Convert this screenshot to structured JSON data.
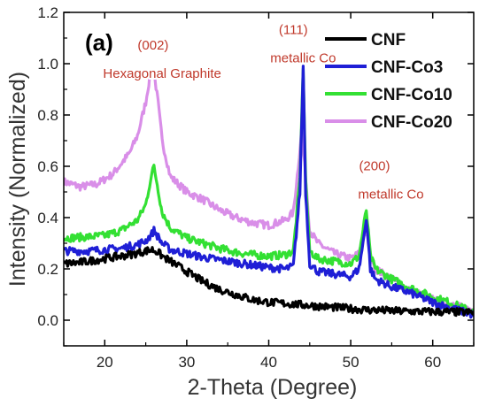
{
  "chart_data": {
    "type": "line",
    "panel_label": "(a)",
    "xlabel": "2-Theta (Degree)",
    "ylabel": "Intensity (Normalized)",
    "xlim": [
      15,
      65
    ],
    "ylim": [
      -0.1,
      1.2
    ],
    "xticks": [
      20,
      30,
      40,
      50,
      60
    ],
    "yticks": [
      0.0,
      0.2,
      0.4,
      0.6,
      0.8,
      1.0,
      1.2
    ],
    "ytick_labels": [
      "0.0",
      "0.2",
      "0.4",
      "0.6",
      "0.8",
      "1.0",
      "1.2"
    ],
    "legend_position": "top-right",
    "series": [
      {
        "name": "CNF",
        "color": "#000000",
        "x": [
          15,
          17,
          19,
          21,
          23,
          24,
          25,
          25.8,
          26.5,
          27,
          28,
          29,
          30,
          32,
          34,
          36,
          38,
          40,
          42,
          44,
          46,
          48,
          50,
          52,
          54,
          56,
          58,
          60,
          62,
          65
        ],
        "y": [
          0.22,
          0.225,
          0.235,
          0.245,
          0.255,
          0.262,
          0.27,
          0.275,
          0.265,
          0.25,
          0.23,
          0.21,
          0.19,
          0.15,
          0.12,
          0.1,
          0.08,
          0.07,
          0.065,
          0.06,
          0.055,
          0.05,
          0.045,
          0.04,
          0.038,
          0.035,
          0.034,
          0.033,
          0.032,
          0.03
        ]
      },
      {
        "name": "CNF-Co3",
        "color": "#1f1fd6",
        "x": [
          15,
          18,
          20,
          22,
          24,
          25,
          25.6,
          26,
          26.4,
          27,
          28,
          30,
          32,
          34,
          36,
          38,
          40,
          42,
          43,
          43.8,
          44.2,
          44.5,
          45,
          46,
          48,
          50,
          51,
          51.5,
          51.9,
          52.4,
          53,
          55,
          57,
          60,
          62,
          65
        ],
        "y": [
          0.27,
          0.27,
          0.275,
          0.28,
          0.295,
          0.31,
          0.33,
          0.35,
          0.33,
          0.3,
          0.275,
          0.26,
          0.245,
          0.235,
          0.225,
          0.215,
          0.205,
          0.2,
          0.21,
          0.5,
          0.99,
          0.5,
          0.22,
          0.19,
          0.18,
          0.17,
          0.2,
          0.3,
          0.4,
          0.2,
          0.16,
          0.13,
          0.11,
          0.07,
          0.05,
          0.02
        ]
      },
      {
        "name": "CNF-Co10",
        "color": "#33e033",
        "x": [
          15,
          18,
          20,
          22,
          24,
          25,
          25.6,
          26,
          26.4,
          27,
          28,
          30,
          32,
          34,
          36,
          38,
          40,
          42,
          43,
          43.8,
          44.2,
          44.5,
          45,
          46,
          48,
          50,
          51,
          51.5,
          51.9,
          52.4,
          53,
          55,
          57,
          60,
          62,
          65
        ],
        "y": [
          0.32,
          0.325,
          0.33,
          0.35,
          0.39,
          0.45,
          0.55,
          0.6,
          0.53,
          0.42,
          0.36,
          0.32,
          0.3,
          0.28,
          0.265,
          0.255,
          0.25,
          0.255,
          0.27,
          0.55,
          0.99,
          0.55,
          0.27,
          0.24,
          0.23,
          0.22,
          0.25,
          0.35,
          0.43,
          0.25,
          0.2,
          0.16,
          0.13,
          0.09,
          0.07,
          0.03
        ]
      },
      {
        "name": "CNF-Co20",
        "color": "#d98ee8",
        "x": [
          15,
          17,
          19,
          21,
          23,
          24,
          25,
          25.5,
          26,
          26.5,
          27,
          28,
          30,
          32,
          34,
          36,
          38,
          40,
          42,
          43,
          43.6,
          44,
          44.4,
          45,
          46,
          48,
          50,
          51,
          51.5,
          51.9,
          52.4,
          53,
          55,
          57,
          60,
          62,
          65
        ],
        "y": [
          0.54,
          0.52,
          0.53,
          0.57,
          0.65,
          0.72,
          0.85,
          0.95,
          0.97,
          0.85,
          0.7,
          0.56,
          0.5,
          0.47,
          0.43,
          0.4,
          0.38,
          0.37,
          0.39,
          0.42,
          0.6,
          0.74,
          0.6,
          0.35,
          0.3,
          0.26,
          0.24,
          0.26,
          0.32,
          0.35,
          0.25,
          0.2,
          0.16,
          0.12,
          0.08,
          0.06,
          0.04
        ]
      }
    ],
    "annotations": [
      {
        "text": "(002)",
        "x": 25.9,
        "y": 1.055
      },
      {
        "text": "Hexagonal Graphite",
        "x": 27.0,
        "y": 0.945
      },
      {
        "text": "(111)",
        "x": 43.0,
        "y": 1.115
      },
      {
        "text": "metallic Co",
        "x": 44.2,
        "y": 1.005
      },
      {
        "text": "(200)",
        "x": 52.9,
        "y": 0.585
      },
      {
        "text": "metallic Co",
        "x": 54.9,
        "y": 0.475
      }
    ]
  }
}
